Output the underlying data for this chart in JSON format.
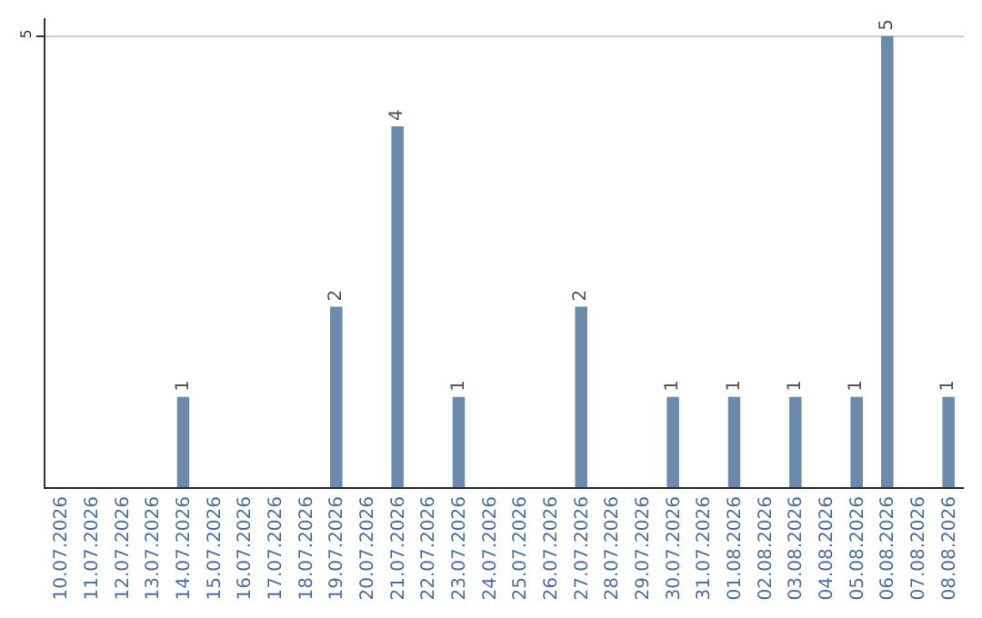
{
  "chart_data": {
    "type": "bar",
    "categories": [
      "10.07.2026",
      "11.07.2026",
      "12.07.2026",
      "13.07.2026",
      "14.07.2026",
      "15.07.2026",
      "16.07.2026",
      "17.07.2026",
      "18.07.2026",
      "19.07.2026",
      "20.07.2026",
      "21.07.2026",
      "22.07.2026",
      "23.07.2026",
      "24.07.2026",
      "25.07.2026",
      "26.07.2026",
      "27.07.2026",
      "28.07.2026",
      "29.07.2026",
      "30.07.2026",
      "31.07.2026",
      "01.08.2026",
      "02.08.2026",
      "03.08.2026",
      "04.08.2026",
      "05.08.2026",
      "06.08.2026",
      "07.08.2026",
      "08.08.2026"
    ],
    "values": [
      null,
      null,
      null,
      null,
      1,
      null,
      null,
      null,
      null,
      2,
      null,
      4,
      null,
      1,
      null,
      null,
      null,
      2,
      null,
      null,
      1,
      null,
      1,
      null,
      1,
      null,
      1,
      5,
      null,
      1
    ],
    "color": "#6a8bab",
    "ylim": [
      0,
      5.2
    ],
    "yticks": [
      5
    ],
    "grid": "y",
    "data_labels": true
  }
}
